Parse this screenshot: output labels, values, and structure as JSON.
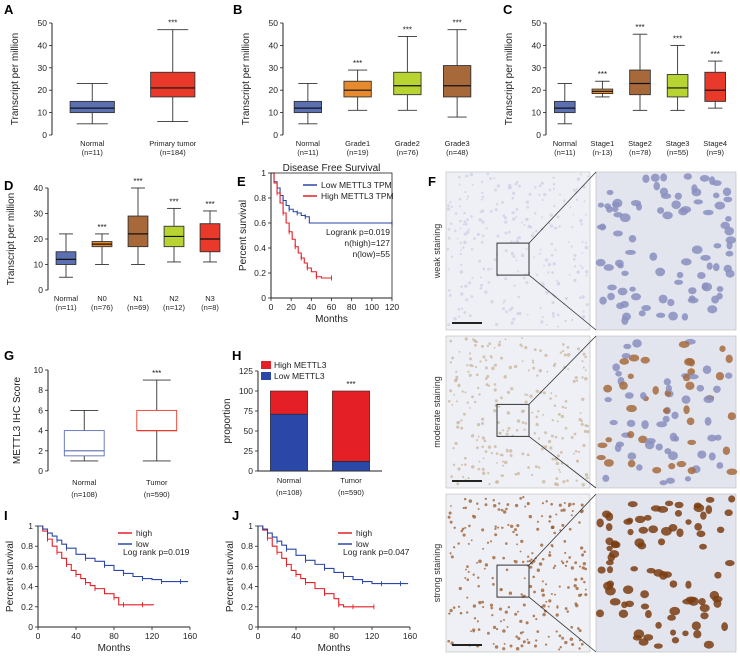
{
  "colors": {
    "normal": "#5b6fb3",
    "tumor": "#e8392b",
    "grade1": "#e68a2e",
    "grade2": "#b8d432",
    "grade3": "#a8693a",
    "stage1": "#e68a2e",
    "stage2": "#a8693a",
    "stage3": "#b8d432",
    "stage4": "#e8392b",
    "n0": "#e68a2e",
    "n1": "#a8693a",
    "n2": "#b8d432",
    "n3": "#e8392b",
    "low": "#2b47a8",
    "high": "#e41f26",
    "stain_weak": "#cdd0e6",
    "stain_moderate": "#c9b49a",
    "stain_strong": "#9a5a2a"
  },
  "chart_data": [
    {
      "id": "A",
      "type": "box",
      "ylabel": "Transcript per million",
      "ylim": [
        0,
        50
      ],
      "yticks": [
        0,
        10,
        20,
        30,
        40,
        50
      ],
      "groups": [
        {
          "label": "Normal",
          "n": "(n=11)",
          "color": "normal",
          "whisker_low": 5,
          "q1": 10,
          "median": 12,
          "q3": 15,
          "whisker_high": 23,
          "sig": ""
        },
        {
          "label": "Primary tumor",
          "n": "(n=184)",
          "color": "tumor",
          "whisker_low": 6,
          "q1": 17,
          "median": 21,
          "q3": 28,
          "whisker_high": 47,
          "sig": "***"
        }
      ]
    },
    {
      "id": "B",
      "type": "box",
      "ylabel": "Transcript per million",
      "ylim": [
        0,
        50
      ],
      "yticks": [
        0,
        10,
        20,
        30,
        40,
        50
      ],
      "groups": [
        {
          "label": "Normal",
          "n": "(n=11)",
          "color": "normal",
          "whisker_low": 5,
          "q1": 10,
          "median": 12,
          "q3": 15,
          "whisker_high": 23,
          "sig": ""
        },
        {
          "label": "Grade1",
          "n": "(n=19)",
          "color": "grade1",
          "whisker_low": 11,
          "q1": 17,
          "median": 20,
          "q3": 24,
          "whisker_high": 29,
          "sig": "***"
        },
        {
          "label": "Grade2",
          "n": "(n=76)",
          "color": "grade2",
          "whisker_low": 11,
          "q1": 18,
          "median": 22,
          "q3": 28,
          "whisker_high": 44,
          "sig": "***"
        },
        {
          "label": "Grade3",
          "n": "(n=48)",
          "color": "grade3",
          "whisker_low": 8,
          "q1": 17,
          "median": 22,
          "q3": 31,
          "whisker_high": 47,
          "sig": "***"
        }
      ]
    },
    {
      "id": "C",
      "type": "box",
      "ylabel": "Transcript per million",
      "ylim": [
        0,
        50
      ],
      "yticks": [
        0,
        10,
        20,
        30,
        40,
        50
      ],
      "groups": [
        {
          "label": "Normal",
          "n": "(n=11)",
          "color": "normal",
          "whisker_low": 5,
          "q1": 10,
          "median": 12,
          "q3": 15,
          "whisker_high": 23,
          "sig": ""
        },
        {
          "label": "Stage1",
          "n": "(n-13)",
          "color": "stage1",
          "whisker_low": 17,
          "q1": 18.5,
          "median": 19.5,
          "q3": 20.5,
          "whisker_high": 24,
          "sig": "***"
        },
        {
          "label": "Stage2",
          "n": "(n=78)",
          "color": "stage2",
          "whisker_low": 11,
          "q1": 18,
          "median": 23,
          "q3": 29,
          "whisker_high": 45,
          "sig": "***"
        },
        {
          "label": "Stage3",
          "n": "(n=55)",
          "color": "stage3",
          "whisker_low": 11,
          "q1": 17,
          "median": 21,
          "q3": 27,
          "whisker_high": 40,
          "sig": "***"
        },
        {
          "label": "Stage4",
          "n": "(n=9)",
          "color": "stage4",
          "whisker_low": 12,
          "q1": 15,
          "median": 20,
          "q3": 28,
          "whisker_high": 33,
          "sig": "***"
        }
      ]
    },
    {
      "id": "D",
      "type": "box",
      "ylabel": "Transcript per million",
      "ylim": [
        0,
        40
      ],
      "yticks": [
        0,
        10,
        20,
        30,
        40
      ],
      "groups": [
        {
          "label": "Normal",
          "n": "(n=11)",
          "color": "normal",
          "whisker_low": 5,
          "q1": 10,
          "median": 12,
          "q3": 15,
          "whisker_high": 22,
          "sig": ""
        },
        {
          "label": "N0",
          "n": "(n=76)",
          "color": "n0",
          "whisker_low": 10,
          "q1": 17,
          "median": 18,
          "q3": 19,
          "whisker_high": 22,
          "sig": "***"
        },
        {
          "label": "N1",
          "n": "(n=69)",
          "color": "n1",
          "whisker_low": 10,
          "q1": 17,
          "median": 22,
          "q3": 29,
          "whisker_high": 40,
          "sig": "***"
        },
        {
          "label": "N2",
          "n": "(n=12)",
          "color": "n2",
          "whisker_low": 11,
          "q1": 17,
          "median": 21,
          "q3": 25,
          "whisker_high": 32,
          "sig": "***"
        },
        {
          "label": "N3",
          "n": "(n=8)",
          "color": "n3",
          "whisker_low": 11,
          "q1": 15,
          "median": 20,
          "q3": 26,
          "whisker_high": 31,
          "sig": "***"
        }
      ]
    },
    {
      "id": "E",
      "type": "km",
      "title": "Disease Free Survival",
      "xlabel": "Months",
      "ylabel": "Percent survival",
      "xlim": [
        0,
        120
      ],
      "ylim": [
        0,
        1.0
      ],
      "xticks": [
        0,
        20,
        40,
        60,
        80,
        100,
        120
      ],
      "yticks": [
        0,
        0.2,
        0.4,
        0.6,
        0.8,
        1.0
      ],
      "annotations": [
        "Logrank p=0.019",
        "n(high)=127",
        "n(low)=55"
      ],
      "series": [
        {
          "name": "Low METTL3 TPM",
          "color": "low",
          "x": [
            0,
            3,
            6,
            9,
            12,
            15,
            18,
            22,
            26,
            30,
            34,
            38,
            120
          ],
          "y": [
            1.0,
            0.93,
            0.88,
            0.82,
            0.78,
            0.74,
            0.71,
            0.69,
            0.68,
            0.66,
            0.65,
            0.6,
            0.6
          ]
        },
        {
          "name": "High METTL3 TPM",
          "color": "high",
          "x": [
            0,
            3,
            6,
            9,
            12,
            15,
            18,
            21,
            24,
            27,
            30,
            33,
            36,
            40,
            45,
            50,
            60
          ],
          "y": [
            1.0,
            0.92,
            0.84,
            0.76,
            0.68,
            0.6,
            0.53,
            0.47,
            0.41,
            0.36,
            0.32,
            0.28,
            0.24,
            0.21,
            0.17,
            0.16,
            0.16
          ]
        }
      ]
    },
    {
      "id": "G",
      "type": "box",
      "ylabel": "METTL3 IHC Score",
      "ylim": [
        0,
        10
      ],
      "yticks": [
        0,
        2,
        4,
        6,
        8,
        10
      ],
      "groups": [
        {
          "label": "Normal",
          "n": "(n=108)",
          "color": "normal",
          "whisker_low": 1,
          "q1": 1.5,
          "median": 2,
          "q3": 4,
          "whisker_high": 6,
          "sig": ""
        },
        {
          "label": "Tumor",
          "n": "(n=590)",
          "color": "tumor",
          "whisker_low": 1,
          "q1": 4,
          "median": 4,
          "q3": 6,
          "whisker_high": 9,
          "sig": "***"
        }
      ]
    },
    {
      "id": "H",
      "type": "stacked-bar",
      "ylabel": "proportion",
      "ylim": [
        0,
        125
      ],
      "yticks": [
        0,
        25,
        50,
        75,
        100,
        125
      ],
      "legend": [
        "High METTL3",
        "Low METTL3"
      ],
      "categories": [
        "Normal",
        "Tumor"
      ],
      "n": [
        "(n=108)",
        "(n=590)"
      ],
      "series": [
        {
          "name": "Low METTL3",
          "color": "low",
          "values": [
            71,
            12
          ]
        },
        {
          "name": "High METTL3",
          "color": "high",
          "values": [
            29,
            88
          ]
        }
      ],
      "sig": [
        "",
        "***"
      ]
    },
    {
      "id": "I",
      "type": "km",
      "xlabel": "Months",
      "ylabel": "Percent survival",
      "xlim": [
        0,
        160
      ],
      "ylim": [
        0,
        1.0
      ],
      "xticks": [
        0,
        40,
        80,
        120,
        160
      ],
      "yticks": [
        0,
        0.2,
        0.4,
        0.6,
        0.8,
        1.0
      ],
      "annotations": [
        "Log rank p=0.019"
      ],
      "series": [
        {
          "name": "high",
          "color": "high",
          "x": [
            0,
            5,
            10,
            15,
            20,
            25,
            30,
            35,
            40,
            45,
            50,
            55,
            60,
            70,
            80,
            85,
            90,
            100,
            110,
            122
          ],
          "y": [
            1.0,
            0.95,
            0.87,
            0.8,
            0.74,
            0.68,
            0.62,
            0.56,
            0.52,
            0.48,
            0.44,
            0.41,
            0.38,
            0.33,
            0.29,
            0.22,
            0.22,
            0.22,
            0.22,
            0.22
          ]
        },
        {
          "name": "low",
          "color": "low",
          "x": [
            0,
            5,
            10,
            15,
            20,
            25,
            30,
            40,
            50,
            60,
            70,
            80,
            90,
            100,
            110,
            120,
            130,
            140,
            150,
            158
          ],
          "y": [
            1.0,
            0.97,
            0.93,
            0.9,
            0.86,
            0.82,
            0.78,
            0.72,
            0.68,
            0.65,
            0.61,
            0.56,
            0.53,
            0.5,
            0.48,
            0.47,
            0.45,
            0.45,
            0.45,
            0.45
          ]
        }
      ]
    },
    {
      "id": "J",
      "type": "km",
      "xlabel": "Months",
      "ylabel": "Percent survival",
      "xlim": [
        0,
        160
      ],
      "ylim": [
        0,
        1.0
      ],
      "xticks": [
        0,
        40,
        80,
        120,
        160
      ],
      "yticks": [
        0,
        0.2,
        0.4,
        0.6,
        0.8,
        1.0
      ],
      "annotations": [
        "Log rank p=0.047"
      ],
      "series": [
        {
          "name": "high",
          "color": "high",
          "x": [
            0,
            5,
            10,
            15,
            20,
            25,
            30,
            35,
            40,
            45,
            50,
            60,
            70,
            80,
            85,
            90,
            100,
            110,
            122
          ],
          "y": [
            1.0,
            0.96,
            0.88,
            0.8,
            0.74,
            0.68,
            0.62,
            0.56,
            0.52,
            0.48,
            0.44,
            0.38,
            0.33,
            0.28,
            0.22,
            0.2,
            0.2,
            0.2,
            0.2
          ]
        },
        {
          "name": "low",
          "color": "low",
          "x": [
            0,
            5,
            10,
            15,
            20,
            25,
            30,
            40,
            50,
            60,
            70,
            80,
            90,
            100,
            110,
            120,
            130,
            140,
            150,
            158
          ],
          "y": [
            1.0,
            0.97,
            0.93,
            0.89,
            0.85,
            0.81,
            0.77,
            0.71,
            0.66,
            0.62,
            0.58,
            0.54,
            0.5,
            0.47,
            0.45,
            0.43,
            0.43,
            0.43,
            0.43,
            0.43
          ]
        }
      ]
    }
  ],
  "ihc": {
    "letter": "F",
    "rows": [
      {
        "label": "weak staining",
        "stain": "stain_weak"
      },
      {
        "label": "moderate staining",
        "stain": "stain_moderate"
      },
      {
        "label": "strong staining",
        "stain": "stain_strong"
      }
    ]
  }
}
